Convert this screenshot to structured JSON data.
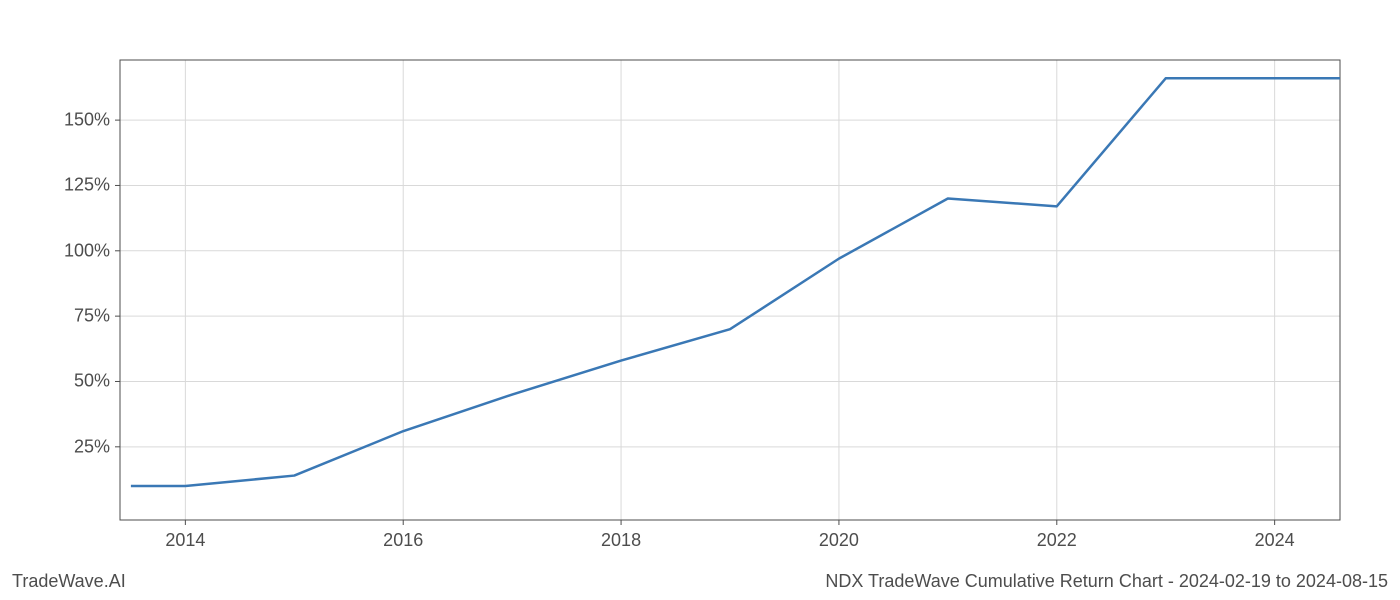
{
  "chart": {
    "type": "line",
    "background_color": "#ffffff",
    "grid_color": "#d9d9d9",
    "axis_spine_color": "#4d4d4d",
    "line_color": "#3a78b5",
    "line_width": 2.5,
    "tick_label_color": "#4d4d4d",
    "tick_fontsize": 18,
    "x": {
      "min": 2013.4,
      "max": 2024.6,
      "ticks": [
        2014,
        2016,
        2018,
        2020,
        2022,
        2024
      ],
      "tick_labels": [
        "2014",
        "2016",
        "2018",
        "2020",
        "2022",
        "2024"
      ]
    },
    "y": {
      "min": -3,
      "max": 173,
      "ticks": [
        25,
        50,
        75,
        100,
        125,
        150
      ],
      "tick_labels": [
        "25%",
        "50%",
        "75%",
        "100%",
        "125%",
        "150%"
      ]
    },
    "series": [
      {
        "x_values": [
          2013.5,
          2014,
          2015,
          2016,
          2017,
          2018,
          2019,
          2020,
          2021,
          2022,
          2023,
          2024,
          2024.6
        ],
        "y_values": [
          10,
          10,
          14,
          31,
          45,
          58,
          70,
          97,
          120,
          117,
          166,
          166,
          166
        ]
      }
    ]
  },
  "footer": {
    "left": "TradeWave.AI",
    "right": "NDX TradeWave Cumulative Return Chart - 2024-02-19 to 2024-08-15"
  }
}
